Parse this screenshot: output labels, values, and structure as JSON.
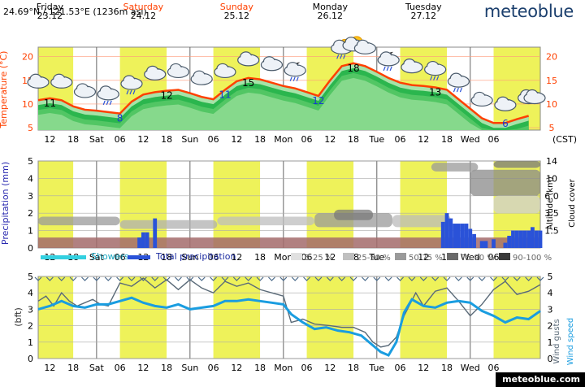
{
  "location": "24.69°N / 121.53°E (1236m asl)",
  "brand": "meteoblue",
  "footer": "meteoblue.com",
  "timezone": "(CST)",
  "days": [
    {
      "name": "Friday",
      "date": "23.12",
      "weekend": false
    },
    {
      "name": "Saturday",
      "date": "24.12",
      "weekend": true
    },
    {
      "name": "Sunday",
      "date": "25.12",
      "weekend": true
    },
    {
      "name": "Monday",
      "date": "26.12",
      "weekend": false
    },
    {
      "name": "Tuesday",
      "date": "27.12",
      "weekend": false
    }
  ],
  "x_ticks": [
    "12",
    "18",
    "Sat",
    "06",
    "12",
    "18",
    "Sun",
    "06",
    "12",
    "18",
    "Mon",
    "06",
    "12",
    "18",
    "Tue",
    "06",
    "12",
    "18",
    "Wed",
    "06"
  ],
  "colors": {
    "daylight": "#eef25a",
    "temp_line": "#ff4000",
    "precip": "#2a52d8",
    "showers": "#33d0e0",
    "wind_speed": "#1a9de0",
    "wind_gusts": "#5a6a78",
    "title_red": "#ff4000"
  },
  "chart_data": [
    {
      "type": "area",
      "title": "Temperature",
      "ylabel": "Temperature (°C)",
      "ylim": [
        4.5,
        22
      ],
      "yticks": [
        5,
        10,
        15,
        20
      ],
      "x_hours_start": 9,
      "x_hours_end": 126,
      "temperature": [
        [
          9,
          10.8
        ],
        [
          12,
          11.2
        ],
        [
          15,
          10.8
        ],
        [
          18,
          9.5
        ],
        [
          21,
          8.8
        ],
        [
          24,
          8.6
        ],
        [
          27,
          8.3
        ],
        [
          30,
          8.0
        ],
        [
          33,
          10.5
        ],
        [
          36,
          12.0
        ],
        [
          39,
          12.5
        ],
        [
          42,
          12.8
        ],
        [
          45,
          13.0
        ],
        [
          48,
          12.3
        ],
        [
          51,
          11.5
        ],
        [
          54,
          11.0
        ],
        [
          57,
          13.0
        ],
        [
          60,
          14.8
        ],
        [
          63,
          15.5
        ],
        [
          66,
          15.2
        ],
        [
          69,
          14.5
        ],
        [
          72,
          13.8
        ],
        [
          75,
          13.3
        ],
        [
          78,
          12.5
        ],
        [
          81,
          11.7
        ],
        [
          84,
          15.0
        ],
        [
          87,
          18.0
        ],
        [
          90,
          18.6
        ],
        [
          93,
          18.0
        ],
        [
          96,
          16.8
        ],
        [
          99,
          15.5
        ],
        [
          102,
          14.5
        ],
        [
          105,
          14.0
        ],
        [
          108,
          13.8
        ],
        [
          111,
          13.5
        ],
        [
          114,
          13.0
        ],
        [
          117,
          11.0
        ],
        [
          120,
          9.0
        ],
        [
          123,
          7.0
        ],
        [
          126,
          6.0
        ],
        [
          129,
          6.0
        ],
        [
          132,
          6.8
        ],
        [
          135,
          7.5
        ]
      ],
      "labels": [
        {
          "hour": 12,
          "value": "11",
          "kind": "max"
        },
        {
          "hour": 30,
          "value": "8",
          "kind": "min"
        },
        {
          "hour": 42,
          "value": "12",
          "kind": "max"
        },
        {
          "hour": 57,
          "value": "11",
          "kind": "min"
        },
        {
          "hour": 63,
          "value": "15",
          "kind": "max"
        },
        {
          "hour": 81,
          "value": "12",
          "kind": "min"
        },
        {
          "hour": 90,
          "value": "18",
          "kind": "max"
        },
        {
          "hour": 111,
          "value": "13",
          "kind": "max"
        },
        {
          "hour": 129,
          "value": "6",
          "kind": "min"
        }
      ]
    },
    {
      "type": "bar",
      "title": "Precipitation",
      "ylabel": "Precipitation (mm)",
      "ylim": [
        0,
        5
      ],
      "yticks": [
        0,
        1,
        2,
        3,
        4,
        5
      ],
      "altitude_label": "Altitude (km)",
      "cloud_label": "Cloud cover",
      "altitude_ticks": [
        "1.5",
        "3.5",
        "6.0",
        "10",
        "14"
      ],
      "precipitation": [
        [
          35,
          0.6
        ],
        [
          36,
          0.9
        ],
        [
          37,
          0.9
        ],
        [
          39,
          1.7
        ],
        [
          113,
          1.5
        ],
        [
          114,
          2.0
        ],
        [
          115,
          1.7
        ],
        [
          116,
          1.4
        ],
        [
          117,
          1.4
        ],
        [
          118,
          1.4
        ],
        [
          119,
          1.4
        ],
        [
          120,
          1.1
        ],
        [
          121,
          0.8
        ],
        [
          123,
          0.4
        ],
        [
          124,
          0.4
        ],
        [
          126,
          0.5
        ],
        [
          129,
          0.3
        ],
        [
          130,
          0.7
        ],
        [
          131,
          1.0
        ],
        [
          132,
          1.0
        ],
        [
          133,
          1.0
        ],
        [
          134,
          1.0
        ],
        [
          135,
          1.0
        ],
        [
          136,
          1.2
        ],
        [
          137,
          1.0
        ],
        [
          138,
          1.0
        ]
      ],
      "legend": {
        "showers": "Showers",
        "total": "Total precipitation",
        "cloud_bins": [
          "5-25 %",
          "25-50 %",
          "50-75 %",
          "75-90 %",
          "90-100 %"
        ]
      }
    },
    {
      "type": "line",
      "title": "Wind",
      "ylabel": "(bft)",
      "ylim": [
        0,
        5
      ],
      "yticks": [
        0,
        1,
        2,
        3,
        4,
        5
      ],
      "series": [
        {
          "name": "Wind gusts",
          "values": [
            [
              9,
              3.5
            ],
            [
              11,
              3.8
            ],
            [
              13,
              3.2
            ],
            [
              15,
              4.0
            ],
            [
              17,
              3.5
            ],
            [
              19,
              3.2
            ],
            [
              21,
              3.4
            ],
            [
              23,
              3.6
            ],
            [
              25,
              3.3
            ],
            [
              27,
              3.2
            ],
            [
              30,
              4.6
            ],
            [
              33,
              4.4
            ],
            [
              36,
              4.9
            ],
            [
              39,
              4.3
            ],
            [
              42,
              4.8
            ],
            [
              45,
              4.2
            ],
            [
              48,
              4.8
            ],
            [
              51,
              4.3
            ],
            [
              54,
              4.0
            ],
            [
              57,
              4.7
            ],
            [
              60,
              4.4
            ],
            [
              63,
              4.6
            ],
            [
              66,
              4.2
            ],
            [
              69,
              4.0
            ],
            [
              72,
              3.8
            ],
            [
              74,
              2.2
            ],
            [
              77,
              2.4
            ],
            [
              80,
              2.1
            ],
            [
              84,
              2.0
            ],
            [
              87,
              1.9
            ],
            [
              90,
              1.9
            ],
            [
              93,
              1.6
            ],
            [
              95,
              1.0
            ],
            [
              97,
              0.7
            ],
            [
              99,
              0.8
            ],
            [
              101,
              1.3
            ],
            [
              103,
              2.6
            ],
            [
              106,
              4.0
            ],
            [
              108,
              3.2
            ],
            [
              111,
              4.1
            ],
            [
              114,
              4.3
            ],
            [
              117,
              3.5
            ],
            [
              120,
              2.6
            ],
            [
              123,
              3.3
            ],
            [
              126,
              4.2
            ],
            [
              129,
              4.7
            ],
            [
              132,
              3.9
            ],
            [
              135,
              4.1
            ],
            [
              138,
              4.5
            ]
          ]
        },
        {
          "name": "Wind speed",
          "values": [
            [
              9,
              3.0
            ],
            [
              12,
              3.2
            ],
            [
              15,
              3.5
            ],
            [
              18,
              3.2
            ],
            [
              21,
              3.1
            ],
            [
              24,
              3.3
            ],
            [
              27,
              3.3
            ],
            [
              30,
              3.5
            ],
            [
              33,
              3.7
            ],
            [
              36,
              3.4
            ],
            [
              39,
              3.2
            ],
            [
              42,
              3.1
            ],
            [
              45,
              3.3
            ],
            [
              48,
              3.0
            ],
            [
              51,
              3.1
            ],
            [
              54,
              3.2
            ],
            [
              57,
              3.5
            ],
            [
              60,
              3.5
            ],
            [
              63,
              3.6
            ],
            [
              66,
              3.5
            ],
            [
              69,
              3.4
            ],
            [
              72,
              3.3
            ],
            [
              74,
              2.7
            ],
            [
              77,
              2.2
            ],
            [
              80,
              1.8
            ],
            [
              83,
              1.9
            ],
            [
              86,
              1.7
            ],
            [
              89,
              1.6
            ],
            [
              92,
              1.4
            ],
            [
              95,
              0.8
            ],
            [
              97,
              0.4
            ],
            [
              99,
              0.2
            ],
            [
              101,
              1.0
            ],
            [
              103,
              2.8
            ],
            [
              105,
              3.6
            ],
            [
              108,
              3.2
            ],
            [
              111,
              3.1
            ],
            [
              114,
              3.4
            ],
            [
              117,
              3.5
            ],
            [
              120,
              3.4
            ],
            [
              123,
              2.9
            ],
            [
              126,
              2.6
            ],
            [
              129,
              2.2
            ],
            [
              132,
              2.5
            ],
            [
              135,
              2.4
            ],
            [
              138,
              2.9
            ]
          ]
        }
      ]
    }
  ]
}
